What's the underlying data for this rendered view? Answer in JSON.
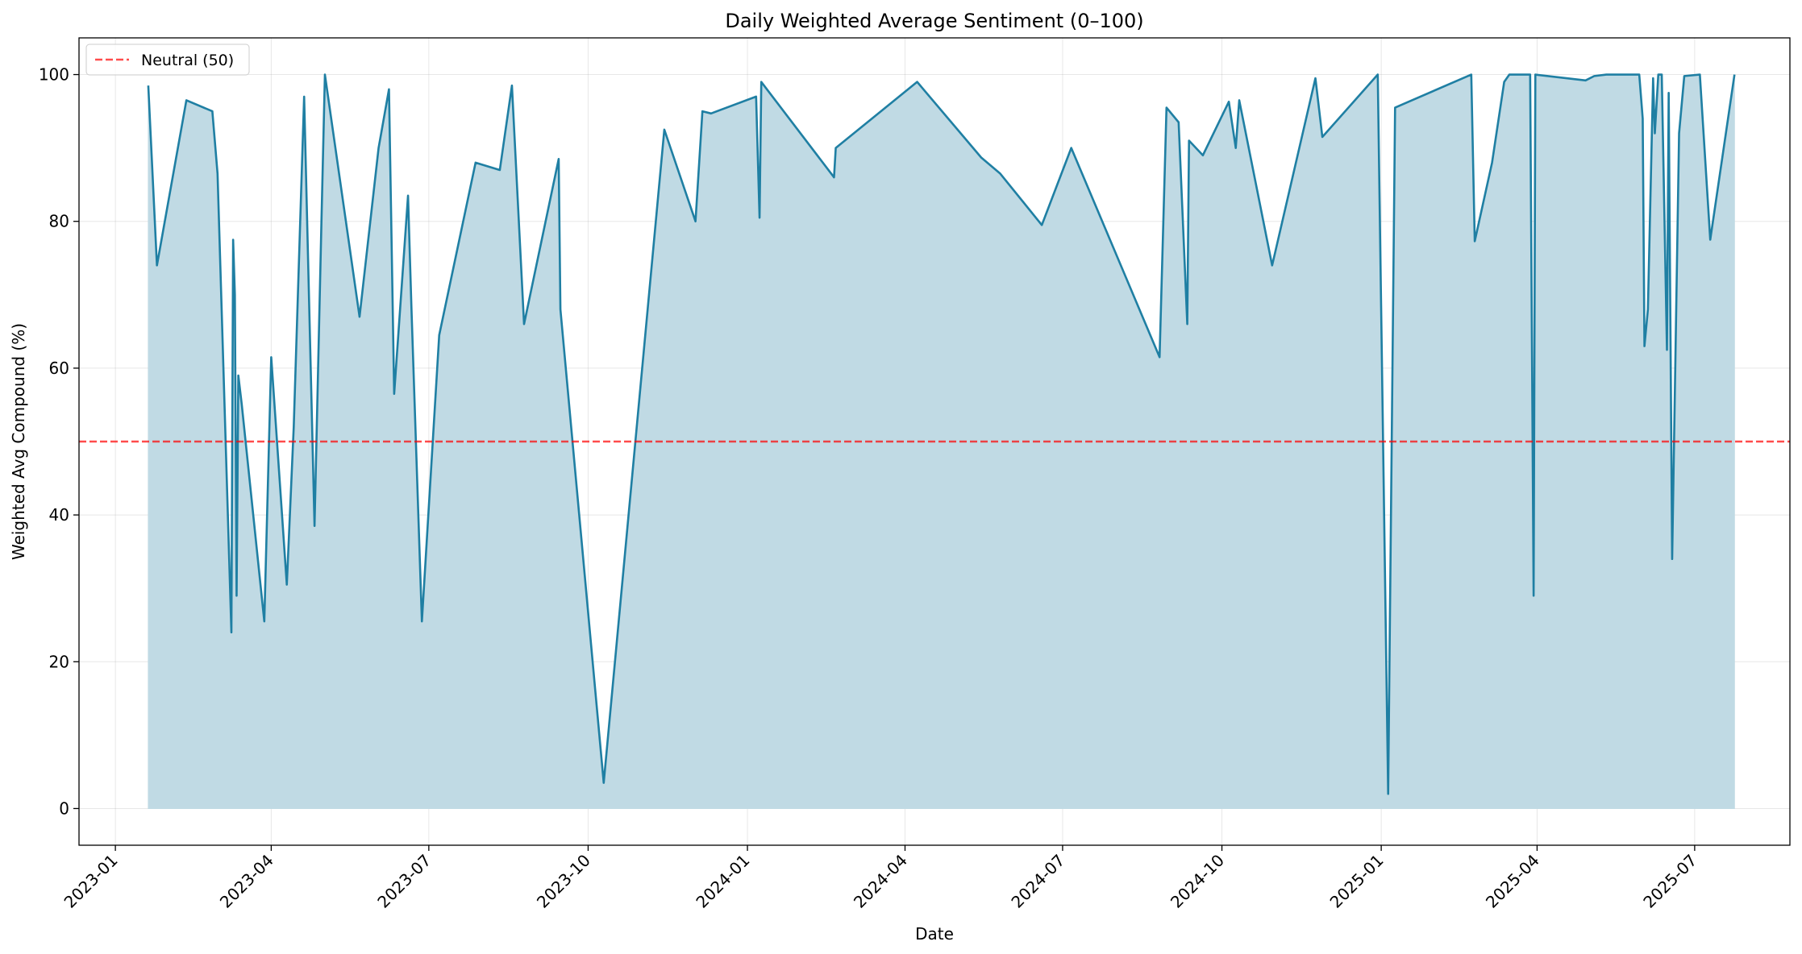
{
  "chart_data": {
    "type": "area",
    "title": "Daily Weighted Average Sentiment (0–100)",
    "xlabel": "Date",
    "ylabel": "Weighted Avg Compound (%)",
    "xlim": [
      "2022-12-11",
      "2025-08-25"
    ],
    "ylim": [
      -5,
      105
    ],
    "yticks": [
      0,
      20,
      40,
      60,
      80,
      100
    ],
    "xticks": [
      "2023-01",
      "2023-04",
      "2023-07",
      "2023-10",
      "2024-01",
      "2024-04",
      "2024-07",
      "2024-10",
      "2025-01",
      "2025-04",
      "2025-07"
    ],
    "grid": true,
    "legend_position": "top-left",
    "reference_line": {
      "label": "Neutral (50)",
      "y": 50,
      "color": "#ff0000",
      "style": "dashed"
    },
    "series": [
      {
        "color": "#1f7fa3",
        "fill_color": "#c0dae4",
        "points": [
          [
            "2023-01-20",
            98.5
          ],
          [
            "2023-01-25",
            74
          ],
          [
            "2023-02-11",
            96.5
          ],
          [
            "2023-02-26",
            95
          ],
          [
            "2023-03-01",
            86.5
          ],
          [
            "2023-03-09",
            24
          ],
          [
            "2023-03-10",
            77.5
          ],
          [
            "2023-03-11",
            70
          ],
          [
            "2023-03-12",
            29
          ],
          [
            "2023-03-13",
            59
          ],
          [
            "2023-03-15",
            55
          ],
          [
            "2023-03-28",
            25.5
          ],
          [
            "2023-04-01",
            61.5
          ],
          [
            "2023-04-10",
            30.5
          ],
          [
            "2023-04-14",
            52
          ],
          [
            "2023-04-20",
            97
          ],
          [
            "2023-04-26",
            38.5
          ],
          [
            "2023-04-30",
            80
          ],
          [
            "2023-05-02",
            100
          ],
          [
            "2023-05-22",
            67
          ],
          [
            "2023-06-02",
            90
          ],
          [
            "2023-06-08",
            98
          ],
          [
            "2023-06-11",
            56.5
          ],
          [
            "2023-06-19",
            83.5
          ],
          [
            "2023-06-21",
            68
          ],
          [
            "2023-06-27",
            25.5
          ],
          [
            "2023-07-07",
            64.5
          ],
          [
            "2023-07-28",
            88
          ],
          [
            "2023-08-11",
            87
          ],
          [
            "2023-08-18",
            98.5
          ],
          [
            "2023-08-25",
            66
          ],
          [
            "2023-09-14",
            88.5
          ],
          [
            "2023-09-15",
            68
          ],
          [
            "2023-10-10",
            3.5
          ],
          [
            "2023-11-14",
            92.5
          ],
          [
            "2023-12-02",
            80
          ],
          [
            "2023-12-06",
            95
          ],
          [
            "2023-12-11",
            94.7
          ],
          [
            "2024-01-06",
            97
          ],
          [
            "2024-01-08",
            80.5
          ],
          [
            "2024-01-09",
            99
          ],
          [
            "2024-02-20",
            86
          ],
          [
            "2024-02-21",
            90
          ],
          [
            "2024-04-08",
            99
          ],
          [
            "2024-05-15",
            88.7
          ],
          [
            "2024-05-26",
            86.5
          ],
          [
            "2024-06-19",
            79.5
          ],
          [
            "2024-07-06",
            90
          ],
          [
            "2024-08-26",
            61.5
          ],
          [
            "2024-08-30",
            95.5
          ],
          [
            "2024-09-06",
            93.5
          ],
          [
            "2024-09-11",
            66
          ],
          [
            "2024-09-12",
            91
          ],
          [
            "2024-09-20",
            89
          ],
          [
            "2024-10-05",
            96.3
          ],
          [
            "2024-10-09",
            90
          ],
          [
            "2024-10-11",
            96.5
          ],
          [
            "2024-10-30",
            74
          ],
          [
            "2024-11-24",
            99.5
          ],
          [
            "2024-11-28",
            91.5
          ],
          [
            "2024-12-30",
            100
          ],
          [
            "2025-01-05",
            2
          ],
          [
            "2025-01-09",
            95.5
          ],
          [
            "2025-02-22",
            100
          ],
          [
            "2025-02-24",
            77.3
          ],
          [
            "2025-03-06",
            88
          ],
          [
            "2025-03-13",
            99
          ],
          [
            "2025-03-16",
            100
          ],
          [
            "2025-03-28",
            100
          ],
          [
            "2025-03-30",
            29
          ],
          [
            "2025-03-31",
            100
          ],
          [
            "2025-04-29",
            99.2
          ],
          [
            "2025-05-04",
            99.8
          ],
          [
            "2025-05-11",
            100
          ],
          [
            "2025-05-30",
            100
          ],
          [
            "2025-06-01",
            94
          ],
          [
            "2025-06-02",
            63
          ],
          [
            "2025-06-04",
            68
          ],
          [
            "2025-06-07",
            99.5
          ],
          [
            "2025-06-08",
            92
          ],
          [
            "2025-06-10",
            100
          ],
          [
            "2025-06-12",
            100
          ],
          [
            "2025-06-15",
            62.5
          ],
          [
            "2025-06-16",
            97.5
          ],
          [
            "2025-06-18",
            34
          ],
          [
            "2025-06-22",
            92
          ],
          [
            "2025-06-25",
            99.8
          ],
          [
            "2025-07-04",
            100
          ],
          [
            "2025-07-10",
            77.5
          ],
          [
            "2025-07-24",
            100
          ]
        ]
      }
    ]
  }
}
